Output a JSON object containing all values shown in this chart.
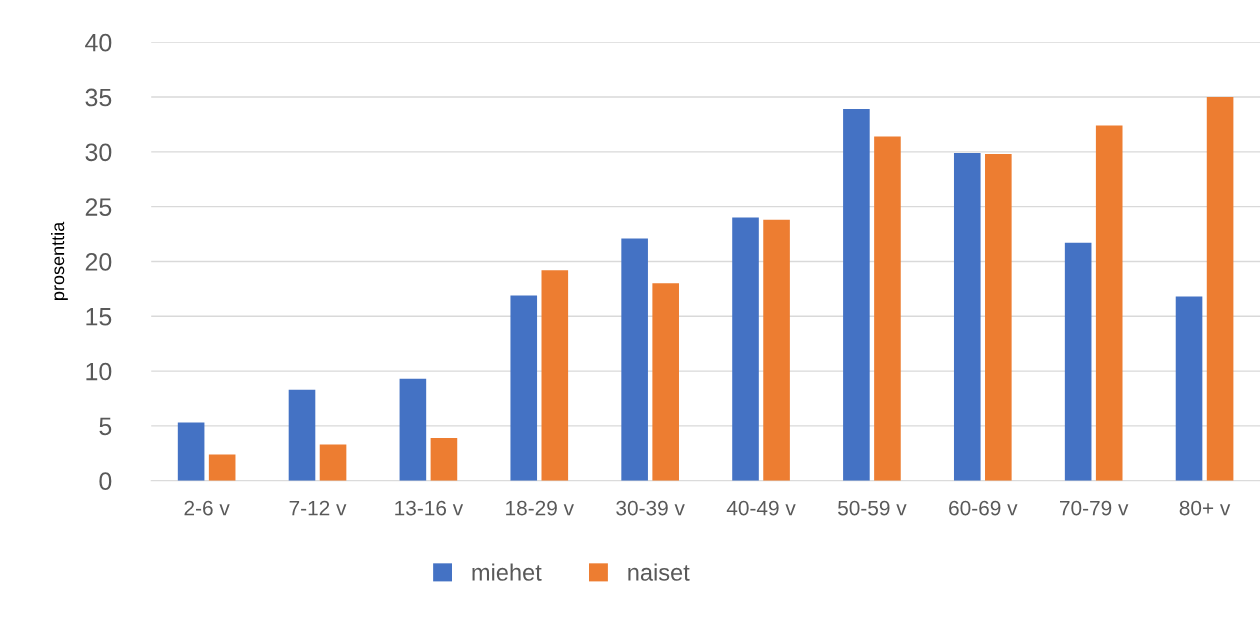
{
  "chart_data": {
    "type": "bar",
    "ylabel": "prosenttia",
    "categories": [
      "2-6 v",
      "7-12 v",
      "13-16 v",
      "18-29 v",
      "30-39 v",
      "40-49 v",
      "50-59 v",
      "60-69 v",
      "70-79 v",
      "80+ v"
    ],
    "series": [
      {
        "name": "miehet",
        "color": "#4472c4",
        "values": [
          5.3,
          8.3,
          9.3,
          16.9,
          22.1,
          24.0,
          33.9,
          29.9,
          21.7,
          16.8
        ]
      },
      {
        "name": "naiset",
        "color": "#ed7d31",
        "values": [
          2.4,
          3.3,
          3.9,
          19.2,
          18.0,
          23.8,
          31.4,
          29.8,
          32.4,
          35.0
        ]
      }
    ],
    "ylim": [
      0,
      40
    ],
    "yticks": [
      0,
      5,
      10,
      15,
      20,
      25,
      30,
      35,
      40
    ],
    "grid": "y",
    "legend": "bottom"
  }
}
